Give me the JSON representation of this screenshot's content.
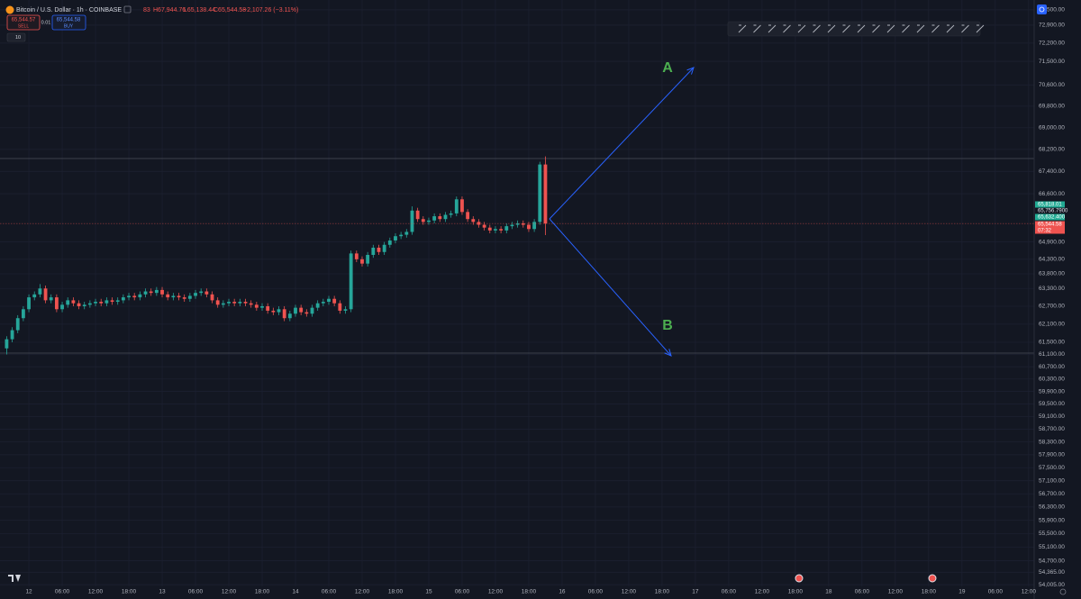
{
  "chart_data": {
    "type": "candlestick",
    "title": "Bitcoin / U.S. Dollar · 1h · COINBASE",
    "x": [
      -4,
      -3,
      -2,
      -1,
      0,
      1,
      2,
      3,
      4,
      5,
      6,
      7,
      8,
      9,
      10,
      11,
      12,
      13,
      14,
      15,
      16,
      17,
      18,
      19,
      20,
      21,
      22,
      23,
      24,
      25,
      26,
      27,
      28,
      29,
      30,
      31,
      32,
      33,
      34,
      35,
      36,
      37,
      38,
      39,
      40,
      41,
      42,
      43,
      44,
      45,
      46,
      47,
      48,
      49,
      50,
      51,
      52,
      53,
      54,
      55,
      56,
      57,
      58,
      59,
      60,
      61,
      62,
      63,
      64,
      65,
      66,
      67,
      68,
      69,
      70,
      71,
      72,
      73,
      74,
      75,
      76,
      77,
      78,
      79,
      80,
      81,
      82,
      83,
      84,
      85,
      86,
      87,
      88,
      89,
      90,
      91,
      92,
      93
    ],
    "open": [
      61300,
      61600,
      61900,
      62300,
      62600,
      63000,
      63100,
      63300,
      62900,
      63000,
      62600,
      62750,
      62900,
      62800,
      62700,
      62750,
      62800,
      62850,
      62800,
      62900,
      62850,
      62900,
      63000,
      63050,
      63000,
      63100,
      63200,
      63150,
      63250,
      63100,
      63000,
      63050,
      63000,
      62950,
      63050,
      63150,
      63200,
      63100,
      62900,
      62750,
      62800,
      62850,
      62800,
      62850,
      62800,
      62750,
      62650,
      62700,
      62550,
      62500,
      62600,
      62300,
      62450,
      62650,
      62500,
      62450,
      62650,
      62800,
      62850,
      62950,
      62800,
      62550,
      62600,
      64500,
      64300,
      64150,
      64450,
      64700,
      64550,
      64800,
      64950,
      65100,
      65150,
      65250,
      66000,
      65700,
      65600,
      65650,
      65800,
      65700,
      65850,
      65900,
      66400,
      65950,
      65700,
      65600,
      65500,
      65400,
      65300,
      65350,
      65300,
      65450,
      65500,
      65550,
      65500,
      65350,
      65600,
      67651.83
    ],
    "high": [
      61700,
      62000,
      62400,
      62700,
      63100,
      63200,
      63450,
      63400,
      63100,
      63100,
      62850,
      63000,
      63000,
      62900,
      62850,
      62900,
      62950,
      62950,
      63000,
      63000,
      63000,
      63100,
      63150,
      63150,
      63200,
      63300,
      63300,
      63350,
      63350,
      63200,
      63150,
      63150,
      63100,
      63150,
      63250,
      63300,
      63300,
      63200,
      63000,
      62900,
      62950,
      62950,
      62950,
      62950,
      62900,
      62850,
      62800,
      62800,
      62650,
      62700,
      62700,
      62550,
      62750,
      62750,
      62600,
      62750,
      62900,
      62950,
      63050,
      63050,
      62900,
      62700,
      64600,
      64600,
      64400,
      64550,
      64800,
      64800,
      64900,
      65050,
      65200,
      65250,
      65350,
      66150,
      66100,
      65800,
      65750,
      65900,
      65900,
      65950,
      66000,
      66500,
      66500,
      66050,
      65800,
      65700,
      65600,
      65500,
      65450,
      65450,
      65550,
      65600,
      65650,
      65650,
      65600,
      65700,
      67750,
      67944.76
    ],
    "low": [
      61100,
      61500,
      61800,
      62200,
      62500,
      62900,
      63000,
      62800,
      62800,
      62500,
      62500,
      62650,
      62700,
      62600,
      62600,
      62650,
      62700,
      62700,
      62700,
      62750,
      62750,
      62800,
      62900,
      62900,
      62900,
      63000,
      63050,
      63050,
      63000,
      62900,
      62900,
      62900,
      62850,
      62850,
      62950,
      63050,
      63000,
      62800,
      62650,
      62650,
      62700,
      62700,
      62700,
      62700,
      62650,
      62550,
      62550,
      62450,
      62400,
      62400,
      62200,
      62200,
      62350,
      62400,
      62350,
      62350,
      62550,
      62700,
      62750,
      62700,
      62450,
      62450,
      62500,
      64200,
      64050,
      64050,
      64350,
      64450,
      64450,
      64700,
      64850,
      65000,
      65050,
      65150,
      65600,
      65500,
      65500,
      65550,
      65600,
      65600,
      65750,
      65800,
      65850,
      65600,
      65500,
      65400,
      65300,
      65200,
      65200,
      65200,
      65200,
      65350,
      65400,
      65400,
      65250,
      65250,
      65500,
      65138.44
    ],
    "close": [
      61600,
      61900,
      62300,
      62600,
      63000,
      63100,
      63300,
      62900,
      63000,
      62600,
      62750,
      62900,
      62800,
      62700,
      62750,
      62800,
      62850,
      62800,
      62900,
      62850,
      62900,
      63000,
      63050,
      63000,
      63100,
      63200,
      63150,
      63250,
      63100,
      63000,
      63050,
      63000,
      62950,
      63050,
      63150,
      63200,
      63100,
      62900,
      62750,
      62800,
      62850,
      62800,
      62850,
      62800,
      62750,
      62650,
      62700,
      62550,
      62500,
      62600,
      62300,
      62450,
      62650,
      62500,
      62450,
      62650,
      62800,
      62850,
      62950,
      62800,
      62550,
      62600,
      64500,
      64300,
      64150,
      64450,
      64700,
      64550,
      64800,
      64950,
      65100,
      65150,
      65250,
      66000,
      65700,
      65600,
      65650,
      65800,
      65700,
      65850,
      65900,
      66400,
      65950,
      65700,
      65600,
      65500,
      65400,
      65300,
      65350,
      65300,
      65450,
      65500,
      65550,
      65500,
      65350,
      65600,
      67651.83,
      65544.58
    ],
    "up_color": "#26a69a",
    "down_color": "#ef5350",
    "log_scale": true,
    "grid": true,
    "ylim": [
      53850,
      73890
    ],
    "yticks": [
      {
        "value": 73500,
        "label": "73,500.00"
      },
      {
        "value": 72900,
        "label": "72,900.00"
      },
      {
        "value": 72200,
        "label": "72,200.00"
      },
      {
        "value": 71500,
        "label": "71,500.00"
      },
      {
        "value": 70600,
        "label": "70,600.00"
      },
      {
        "value": 69800,
        "label": "69,800.00"
      },
      {
        "value": 69000,
        "label": "69,000.00"
      },
      {
        "value": 68200,
        "label": "68,200.00"
      },
      {
        "value": 67400,
        "label": "67,400.00"
      },
      {
        "value": 66600,
        "label": "66,600.00"
      },
      {
        "value": 64900,
        "label": "64,900.00"
      },
      {
        "value": 64300,
        "label": "64,300.00"
      },
      {
        "value": 63800,
        "label": "63,800.00"
      },
      {
        "value": 63300,
        "label": "63,300.00"
      },
      {
        "value": 62700,
        "label": "62,700.00"
      },
      {
        "value": 62100,
        "label": "62,100.00"
      },
      {
        "value": 61500,
        "label": "61,500.00"
      },
      {
        "value": 61100,
        "label": "61,100.00"
      },
      {
        "value": 60700,
        "label": "60,700.00"
      },
      {
        "value": 60300,
        "label": "60,300.00"
      },
      {
        "value": 59900,
        "label": "59,900.00"
      },
      {
        "value": 59500,
        "label": "59,500.00"
      },
      {
        "value": 59100,
        "label": "59,100.00"
      },
      {
        "value": 58700,
        "label": "58,700.00"
      },
      {
        "value": 58300,
        "label": "58,300.00"
      },
      {
        "value": 57900,
        "label": "57,900.00"
      },
      {
        "value": 57500,
        "label": "57,500.00"
      },
      {
        "value": 57100,
        "label": "57,100.00"
      },
      {
        "value": 56700,
        "label": "56,700.00"
      },
      {
        "value": 56300,
        "label": "56,300.00"
      },
      {
        "value": 55900,
        "label": "55,900.00"
      },
      {
        "value": 55500,
        "label": "55,500.00"
      },
      {
        "value": 55100,
        "label": "55,100.00"
      },
      {
        "value": 54700,
        "label": "54,700.00"
      },
      {
        "value": 54365,
        "label": "54,365.00"
      },
      {
        "value": 54005,
        "label": "54,005.00"
      }
    ],
    "xlim": [
      -5.2,
      181
    ],
    "xticks": [
      {
        "value": 0,
        "label": "12"
      },
      {
        "value": 6,
        "label": "06:00"
      },
      {
        "value": 12,
        "label": "12:00"
      },
      {
        "value": 18,
        "label": "18:00"
      },
      {
        "value": 24,
        "label": "13"
      },
      {
        "value": 30,
        "label": "06:00"
      },
      {
        "value": 36,
        "label": "12:00"
      },
      {
        "value": 42,
        "label": "18:00"
      },
      {
        "value": 48,
        "label": "14"
      },
      {
        "value": 54,
        "label": "06:00"
      },
      {
        "value": 60,
        "label": "12:00"
      },
      {
        "value": 66,
        "label": "18:00"
      },
      {
        "value": 72,
        "label": "15"
      },
      {
        "value": 78,
        "label": "06:00"
      },
      {
        "value": 84,
        "label": "12:00"
      },
      {
        "value": 90,
        "label": "18:00"
      },
      {
        "value": 96,
        "label": "16"
      },
      {
        "value": 102,
        "label": "06:00"
      },
      {
        "value": 108,
        "label": "12:00"
      },
      {
        "value": 114,
        "label": "18:00"
      },
      {
        "value": 120,
        "label": "17"
      },
      {
        "value": 126,
        "label": "06:00"
      },
      {
        "value": 132,
        "label": "12:00"
      },
      {
        "value": 138,
        "label": "18:00"
      },
      {
        "value": 144,
        "label": "18"
      },
      {
        "value": 150,
        "label": "06:00"
      },
      {
        "value": 156,
        "label": "12:00"
      },
      {
        "value": 162,
        "label": "18:00"
      },
      {
        "value": 168,
        "label": "19"
      },
      {
        "value": 174,
        "label": "06:00"
      },
      {
        "value": 180,
        "label": "12:00"
      }
    ],
    "annotations": [
      "A",
      "B"
    ],
    "annotation_color": "#4caf50",
    "arrow_color": "#2962ff"
  },
  "header": {
    "open_tail": "83",
    "high": "H67,944.76",
    "low": "L65,138.44",
    "close": "C65,544.58",
    "change": "−2,107.26 (−3.11%)"
  },
  "order_panel": {
    "sell_price": "65,544.57",
    "sell": "SELL",
    "quantity": "0.01",
    "buy_price": "65,544.58",
    "buy": "BUY",
    "lots": "10"
  },
  "price_labels": [
    {
      "text": "65,818.01",
      "color": "#22ab94"
    },
    {
      "text": "65,756.7900",
      "color": "#e0e3eb"
    },
    {
      "text": "65,632.400",
      "color": "#22ab94"
    },
    {
      "text": "65,544.58",
      "color": "#ef5350"
    },
    {
      "text": "07:32",
      "color": "#ef5350"
    }
  ]
}
